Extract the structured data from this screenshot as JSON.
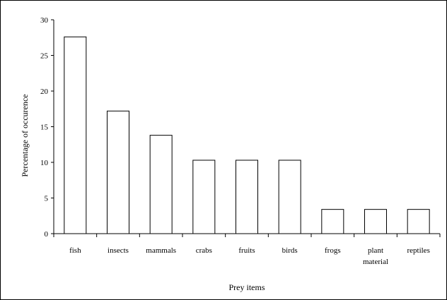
{
  "chart_data": {
    "type": "bar",
    "categories": [
      [
        "fish"
      ],
      [
        "insects"
      ],
      [
        "mammals"
      ],
      [
        "crabs"
      ],
      [
        "fruits"
      ],
      [
        "birds"
      ],
      [
        "frogs"
      ],
      [
        "plant",
        "material"
      ],
      [
        "reptiles"
      ]
    ],
    "values": [
      27.6,
      17.2,
      13.8,
      10.3,
      10.3,
      10.3,
      3.4,
      3.4,
      3.4
    ],
    "xlabel": "Prey items",
    "ylabel": "Percentage of occurence",
    "ylim": [
      0,
      30
    ],
    "yticks": [
      0,
      5,
      10,
      15,
      20,
      25,
      30
    ],
    "grid": false,
    "legend": "none",
    "colors": {
      "bar_fill": "#ffffff",
      "bar_stroke": "#000000",
      "axis": "#000000"
    }
  }
}
